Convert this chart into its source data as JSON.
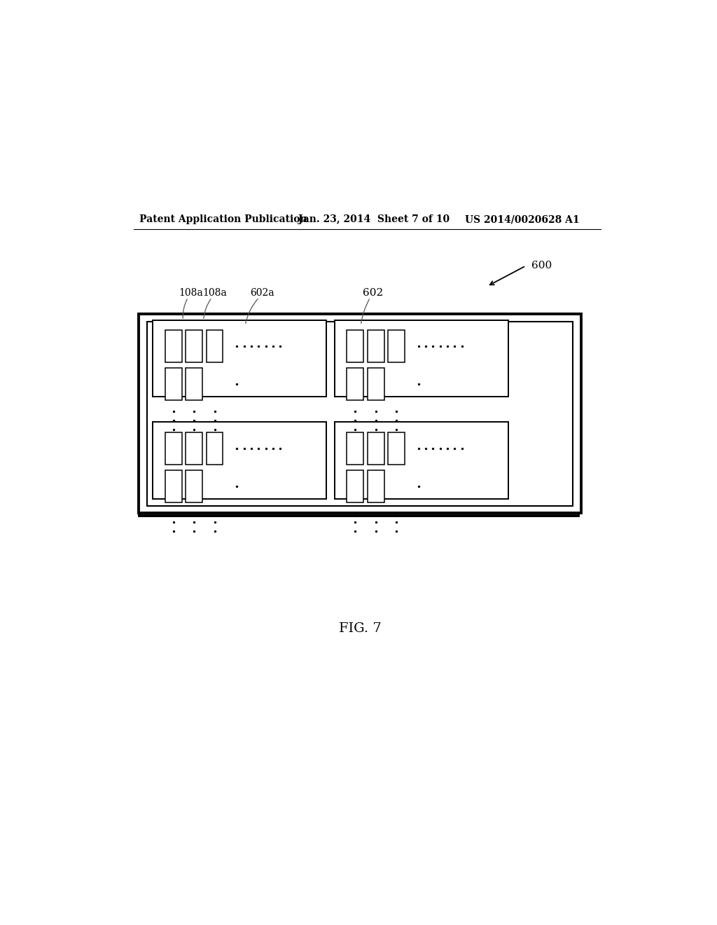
{
  "bg_color": "#ffffff",
  "line_color": "#000000",
  "header_text": "Patent Application Publication",
  "header_date": "Jan. 23, 2014  Sheet 7 of 10",
  "header_patent": "US 2014/0020628 A1",
  "fig_label": "FIG. 7",
  "label_600": "600",
  "label_602": "602",
  "label_602a": "602a",
  "label_108a_1": "108a",
  "label_108a_2": "108a"
}
